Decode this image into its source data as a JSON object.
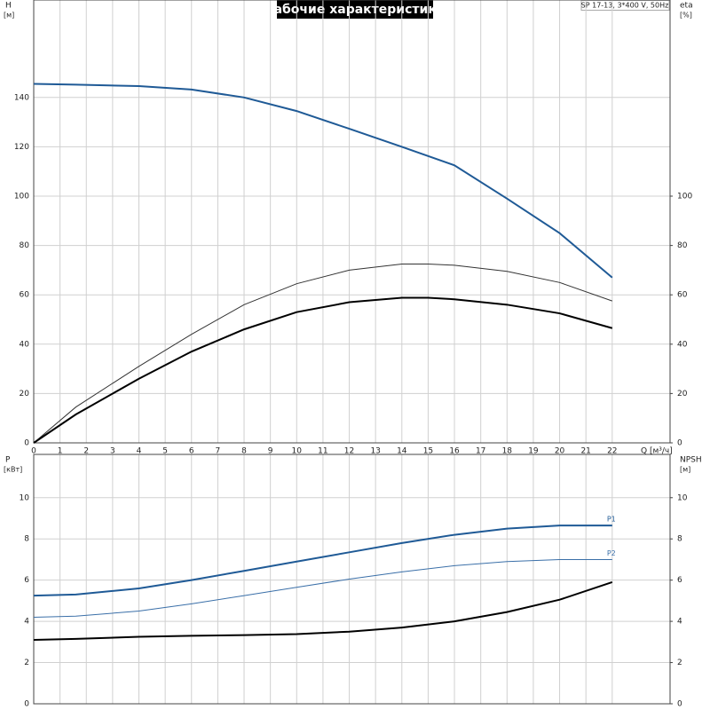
{
  "chart_data": [
    {
      "type": "line",
      "title": "Рабочие характеристики",
      "annotation": "SP 17-13, 3*400 V, 50Hz",
      "x_label": "Q [м³/ч]",
      "y_label": "H",
      "y_unit": "[м]",
      "y2_label": "eta",
      "y2_unit": "[%]",
      "xlim": [
        0,
        24.2
      ],
      "xticks": [
        0,
        1,
        2,
        3,
        4,
        5,
        6,
        7,
        8,
        9,
        10,
        11,
        12,
        13,
        14,
        15,
        16,
        17,
        18,
        19,
        20,
        21,
        22
      ],
      "ylim": [
        0,
        179.5
      ],
      "yticks": [
        0,
        20,
        40,
        60,
        80,
        100,
        120,
        140
      ],
      "y2lim": [
        0,
        179.5
      ],
      "y2ticks": [
        0,
        20,
        40,
        60,
        80,
        100
      ],
      "grid": true,
      "series": [
        {
          "color": "#1f5a96",
          "width": 2,
          "x": [
            0,
            1.6,
            4,
            6,
            8,
            10,
            12,
            14,
            16,
            18,
            20,
            22
          ],
          "values": [
            145.5,
            145.2,
            144.6,
            143.2,
            140,
            134.5,
            127.3,
            120,
            112.5,
            99,
            85,
            67
          ]
        },
        {
          "color": "#333333",
          "width": 1,
          "axis": "y2",
          "x": [
            0,
            1.6,
            4,
            6,
            8,
            10,
            12,
            14,
            15,
            16,
            18,
            20,
            22
          ],
          "values": [
            0,
            14.5,
            31,
            44,
            56,
            64.5,
            70,
            72.5,
            72.5,
            72,
            69.5,
            65,
            57.5
          ]
        },
        {
          "color": "#000000",
          "width": 2,
          "axis": "y2",
          "x": [
            0,
            1.6,
            4,
            6,
            8,
            10,
            12,
            14,
            15,
            16,
            18,
            20,
            22
          ],
          "values": [
            0,
            11.5,
            26,
            37,
            46,
            53,
            57,
            58.8,
            58.8,
            58.2,
            56,
            52.5,
            46.5
          ]
        }
      ]
    },
    {
      "type": "line",
      "y_label": "P",
      "y_unit": "[кВт]",
      "y2_label": "NPSH",
      "y2_unit": "[м]",
      "xlim": [
        0,
        24.2
      ],
      "ylim": [
        0,
        12.1
      ],
      "yticks": [
        0,
        2,
        4,
        6,
        8,
        10
      ],
      "y2lim": [
        0,
        12.1
      ],
      "y2ticks": [
        0,
        2,
        4,
        6,
        8,
        10
      ],
      "grid": true,
      "series": [
        {
          "name": "P1",
          "color": "#1f5a96",
          "width": 2,
          "x": [
            0,
            1.6,
            4,
            6,
            8,
            10,
            12,
            14,
            16,
            18,
            20,
            22
          ],
          "values": [
            5.25,
            5.3,
            5.6,
            6.0,
            6.45,
            6.9,
            7.35,
            7.8,
            8.2,
            8.5,
            8.65,
            8.65
          ]
        },
        {
          "name": "P2",
          "color": "#3a6fa8",
          "width": 1,
          "x": [
            0,
            1.6,
            4,
            6,
            8,
            10,
            12,
            14,
            16,
            18,
            20,
            22
          ],
          "values": [
            4.2,
            4.25,
            4.5,
            4.85,
            5.25,
            5.65,
            6.05,
            6.4,
            6.7,
            6.9,
            7.0,
            7.0
          ]
        },
        {
          "color": "#000000",
          "width": 2,
          "axis": "y2",
          "x": [
            0,
            1.6,
            4,
            6,
            8,
            10,
            12,
            14,
            16,
            18,
            20,
            22
          ],
          "values": [
            3.1,
            3.15,
            3.25,
            3.3,
            3.33,
            3.38,
            3.5,
            3.7,
            4.0,
            4.45,
            5.05,
            5.9
          ]
        }
      ]
    }
  ]
}
